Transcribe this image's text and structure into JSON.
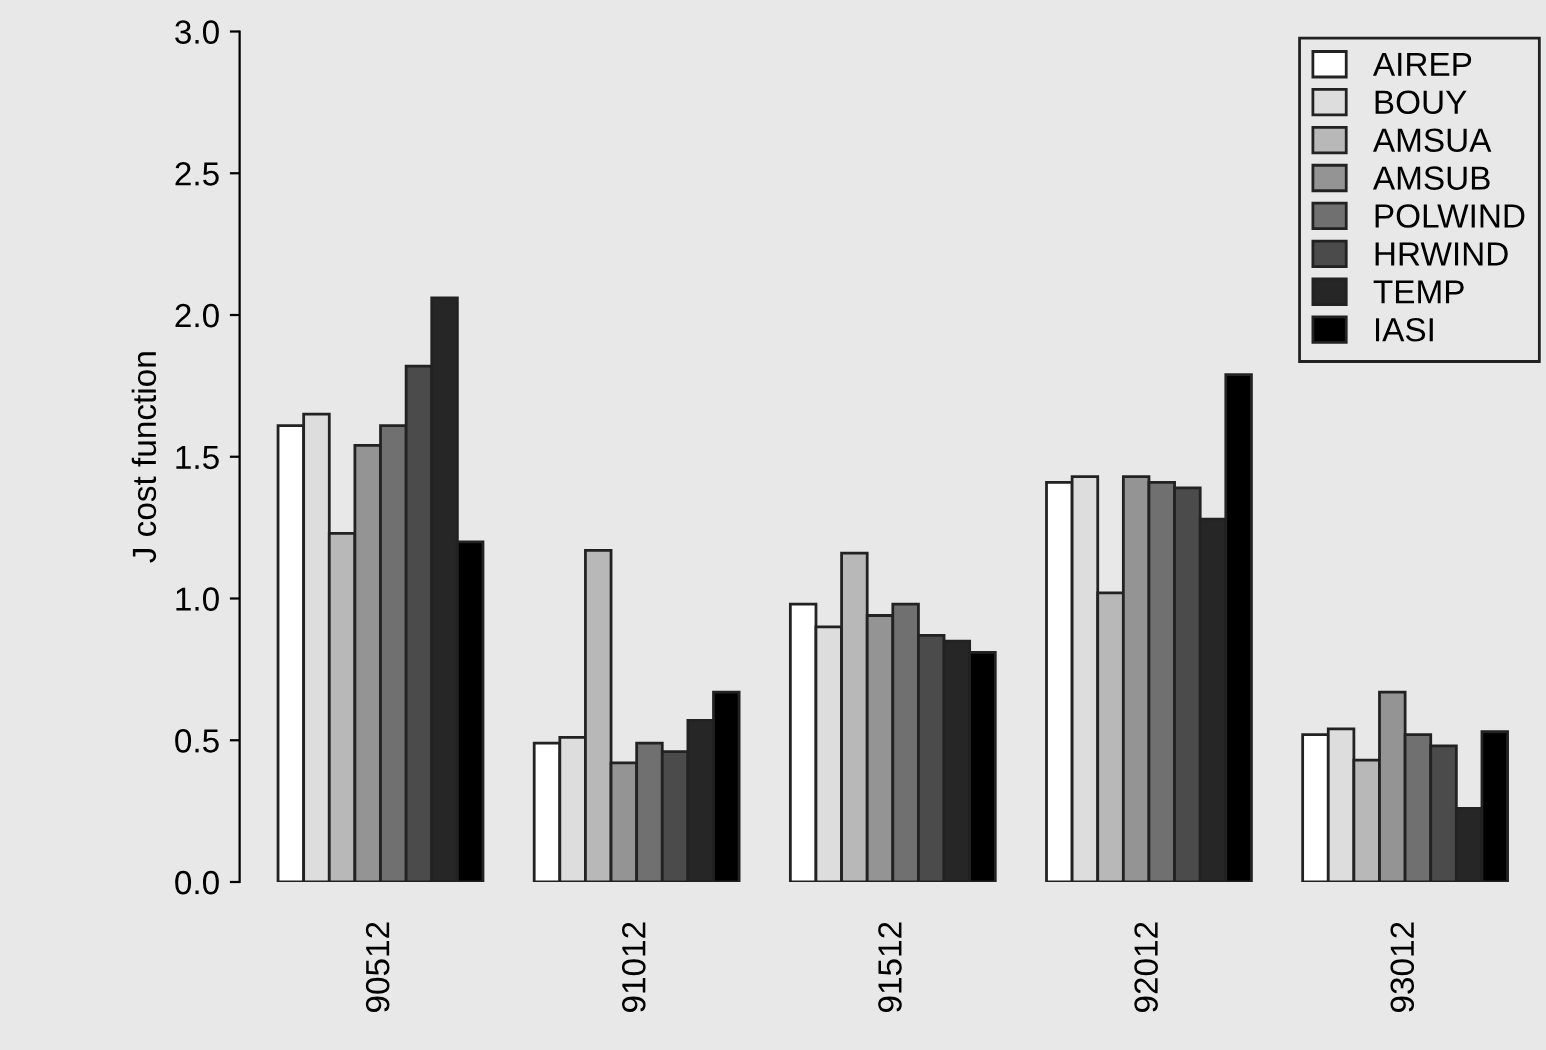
{
  "chart_data": {
    "type": "bar",
    "ylabel": "J cost function",
    "categories": [
      "90512",
      "91012",
      "91512",
      "92012",
      "93012"
    ],
    "series": [
      {
        "name": "AIREP",
        "color": "#ffffff",
        "values": [
          1.61,
          0.49,
          0.98,
          1.41,
          0.52
        ]
      },
      {
        "name": "BOUY",
        "color": "#dddddd",
        "values": [
          1.65,
          0.51,
          0.9,
          1.43,
          0.54
        ]
      },
      {
        "name": "AMSUA",
        "color": "#b8b8b8",
        "values": [
          1.23,
          1.17,
          1.16,
          1.02,
          0.43
        ]
      },
      {
        "name": "AMSUB",
        "color": "#949494",
        "values": [
          1.54,
          0.42,
          0.94,
          1.43,
          0.67
        ]
      },
      {
        "name": "POLWIND",
        "color": "#707070",
        "values": [
          1.61,
          0.49,
          0.98,
          1.41,
          0.52
        ]
      },
      {
        "name": "HRWIND",
        "color": "#4b4b4b",
        "values": [
          1.82,
          0.46,
          0.87,
          1.39,
          0.48
        ]
      },
      {
        "name": "TEMP",
        "color": "#262626",
        "values": [
          2.06,
          0.57,
          0.85,
          1.28,
          0.26
        ]
      },
      {
        "name": "IASI",
        "color": "#000000",
        "values": [
          1.2,
          0.67,
          0.81,
          1.79,
          0.53
        ]
      }
    ],
    "ylim": [
      0,
      3.0
    ],
    "yticks": [
      {
        "value": 0,
        "label": "0.0"
      },
      {
        "value": 0.5,
        "label": "0.5"
      },
      {
        "value": 1,
        "label": "1.0"
      },
      {
        "value": 1.5,
        "label": "1.5"
      },
      {
        "value": 2,
        "label": "2.0"
      },
      {
        "value": 2.5,
        "label": "2.5"
      },
      {
        "value": 3,
        "label": "3.0"
      }
    ],
    "grid": false,
    "legend": "top right"
  }
}
